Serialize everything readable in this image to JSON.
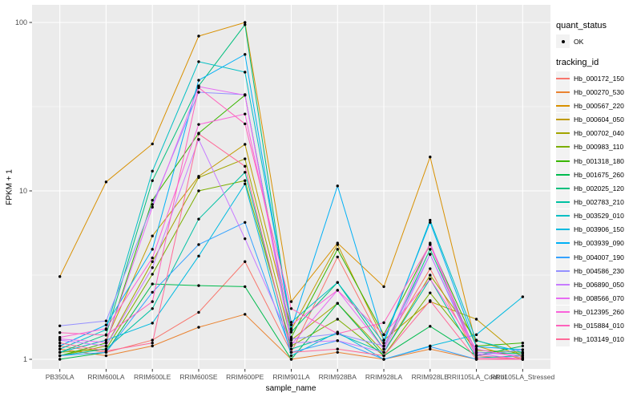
{
  "axes": {
    "y_title": "FPKM + 1",
    "x_title": "sample_name",
    "y_tick_labels": [
      "1",
      "10",
      "100"
    ]
  },
  "legend": {
    "quant_status": {
      "title": "quant_status",
      "ok_label": "OK"
    },
    "tracking": {
      "title": "tracking_id"
    }
  },
  "chart_data": {
    "type": "line",
    "title": "",
    "xlabel": "sample_name",
    "ylabel": "FPKM + 1",
    "yscale": "log10",
    "y_ticks": [
      1,
      10,
      100
    ],
    "ylim": [
      0.88,
      127
    ],
    "grid": true,
    "legend_position": "right",
    "panel_background": "#EBEBEB",
    "grid_color": "#FFFFFF",
    "point_color": "#000000",
    "x": [
      "PB350LA",
      "RRIM600LA",
      "RRIM600LE",
      "RRIM600SE",
      "RRIM600PE",
      "RRIM901LA",
      "RRIM928BA",
      "RRIM928LA",
      "RRIM928LE",
      "RRII105LA_Control",
      "RRII105LA_Stressed"
    ],
    "series": [
      {
        "name": "Hb_000172_150",
        "color": "#F8766D",
        "values": [
          1.2,
          1.1,
          1.3,
          1.9,
          3.8,
          1.1,
          4.05,
          1.2,
          3.45,
          1.05,
          1.0
        ]
      },
      {
        "name": "Hb_000270_530",
        "color": "#EA8331",
        "values": [
          1.15,
          1.05,
          1.2,
          1.55,
          1.85,
          1.0,
          1.1,
          1.0,
          1.15,
          1.0,
          1.0
        ]
      },
      {
        "name": "Hb_000567_220",
        "color": "#D89000",
        "values": [
          3.1,
          11.3,
          19.0,
          83.0,
          100.0,
          2.2,
          4.9,
          2.7,
          15.9,
          1.2,
          1.0
        ]
      },
      {
        "name": "Hb_000604_050",
        "color": "#C09B00",
        "values": [
          1.1,
          1.3,
          5.4,
          12.2,
          18.9,
          1.5,
          4.8,
          1.3,
          2.2,
          1.73,
          1.02
        ]
      },
      {
        "name": "Hb_000702_040",
        "color": "#A3A500",
        "values": [
          1.05,
          1.2,
          3.8,
          12.0,
          15.5,
          1.3,
          2.15,
          1.1,
          3.16,
          1.3,
          1.05
        ]
      },
      {
        "name": "Hb_000983_110",
        "color": "#7CAE00",
        "values": [
          1.1,
          1.15,
          3.2,
          10.0,
          11.5,
          1.2,
          1.73,
          1.05,
          2.48,
          1.13,
          1.1
        ]
      },
      {
        "name": "Hb_001318_180",
        "color": "#39B600",
        "values": [
          1.05,
          1.25,
          8.8,
          22.0,
          37.0,
          1.35,
          4.5,
          1.4,
          4.8,
          1.2,
          1.25
        ]
      },
      {
        "name": "Hb_001675_260",
        "color": "#00BB4E",
        "values": [
          1.0,
          1.1,
          2.8,
          2.74,
          2.7,
          1.0,
          2.15,
          1.05,
          1.57,
          1.05,
          1.2
        ]
      },
      {
        "name": "Hb_002025_120",
        "color": "#00BF7D",
        "values": [
          1.1,
          1.4,
          11.5,
          42.0,
          97.0,
          1.45,
          2.86,
          1.15,
          4.5,
          1.1,
          1.08
        ]
      },
      {
        "name": "Hb_002783_210",
        "color": "#00C1A3",
        "values": [
          1.05,
          1.15,
          2.0,
          6.8,
          12.9,
          1.15,
          1.42,
          1.1,
          3.0,
          1.02,
          1.05
        ]
      },
      {
        "name": "Hb_003529_010",
        "color": "#00BFC4",
        "values": [
          1.15,
          1.5,
          13.1,
          58.5,
          50.7,
          1.66,
          2.86,
          1.25,
          6.7,
          1.29,
          1.1
        ]
      },
      {
        "name": "Hb_003906_150",
        "color": "#00BAE0",
        "values": [
          1.1,
          1.3,
          1.64,
          4.1,
          11.0,
          1.05,
          1.45,
          1.0,
          1.2,
          1.4,
          2.35
        ]
      },
      {
        "name": "Hb_003939_090",
        "color": "#00B0F6",
        "values": [
          1.2,
          1.6,
          4.5,
          45.4,
          64.6,
          1.52,
          10.7,
          1.3,
          6.5,
          1.19,
          1.14
        ]
      },
      {
        "name": "Hb_004007_190",
        "color": "#35A2FF",
        "values": [
          1.05,
          1.1,
          2.5,
          4.8,
          6.5,
          1.1,
          1.29,
          1.0,
          1.19,
          1.0,
          1.0
        ]
      },
      {
        "name": "Hb_004586_230",
        "color": "#9590FF",
        "values": [
          1.58,
          1.69,
          8.3,
          38.5,
          37.3,
          1.32,
          1.42,
          1.2,
          4.2,
          1.05,
          1.14
        ]
      },
      {
        "name": "Hb_006890_050",
        "color": "#C77CFF",
        "values": [
          1.3,
          1.2,
          3.5,
          20.2,
          5.2,
          1.25,
          1.29,
          1.1,
          4.2,
          1.1,
          1.05
        ]
      },
      {
        "name": "Hb_008566_070",
        "color": "#E76BF3",
        "values": [
          1.32,
          1.26,
          8.0,
          41.6,
          37.0,
          1.22,
          2.57,
          1.15,
          4.9,
          1.08,
          1.0
        ]
      },
      {
        "name": "Hb_012395_260",
        "color": "#FA62DB",
        "values": [
          1.35,
          1.52,
          4.0,
          24.8,
          28.6,
          1.6,
          2.57,
          1.4,
          3.0,
          1.15,
          1.02
        ]
      },
      {
        "name": "Hb_015884_010",
        "color": "#FF62BC",
        "values": [
          1.44,
          1.39,
          2.2,
          41.0,
          25.0,
          2.0,
          1.42,
          1.65,
          4.8,
          1.02,
          1.0
        ]
      },
      {
        "name": "Hb_103149_010",
        "color": "#FF6A98",
        "values": [
          1.25,
          1.12,
          1.25,
          21.8,
          14.0,
          1.1,
          1.15,
          1.05,
          2.23,
          1.0,
          1.0
        ]
      }
    ]
  }
}
